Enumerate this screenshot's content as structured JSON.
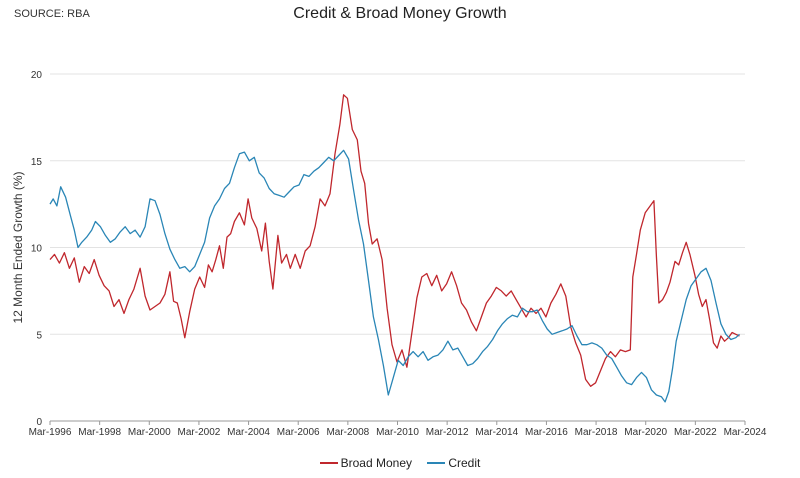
{
  "source": "SOURCE: RBA",
  "chart_data": {
    "type": "line",
    "title": "Credit & Broad Money Growth",
    "xlabel": "",
    "ylabel": "12 Month Ended Growth (%)",
    "ylim": [
      0,
      20
    ],
    "yticks": [
      "0",
      "5",
      "10",
      "15",
      "20"
    ],
    "xlim": [
      1996.17,
      2024.17
    ],
    "xticks": [
      {
        "x": 1996.17,
        "label": "Mar-1996"
      },
      {
        "x": 1998.17,
        "label": "Mar-1998"
      },
      {
        "x": 2000.17,
        "label": "Mar-2000"
      },
      {
        "x": 2002.17,
        "label": "Mar-2002"
      },
      {
        "x": 2004.17,
        "label": "Mar-2004"
      },
      {
        "x": 2006.17,
        "label": "Mar-2006"
      },
      {
        "x": 2008.17,
        "label": "Mar-2008"
      },
      {
        "x": 2010.17,
        "label": "Mar-2010"
      },
      {
        "x": 2012.17,
        "label": "Mar-2012"
      },
      {
        "x": 2014.17,
        "label": "Mar-2014"
      },
      {
        "x": 2016.17,
        "label": "Mar-2016"
      },
      {
        "x": 2018.17,
        "label": "Mar-2018"
      },
      {
        "x": 2020.17,
        "label": "Mar-2020"
      },
      {
        "x": 2022.17,
        "label": "Mar-2022"
      },
      {
        "x": 2024.17,
        "label": "Mar-2024"
      }
    ],
    "grid": "horizontal",
    "legend_position": "bottom",
    "series": [
      {
        "name": "Broad Money",
        "color": "#c0272d",
        "points": [
          [
            1996.17,
            9.3
          ],
          [
            1996.35,
            9.6
          ],
          [
            1996.55,
            9.1
          ],
          [
            1996.75,
            9.7
          ],
          [
            1996.95,
            8.8
          ],
          [
            1997.15,
            9.4
          ],
          [
            1997.35,
            8.0
          ],
          [
            1997.55,
            8.9
          ],
          [
            1997.75,
            8.5
          ],
          [
            1997.95,
            9.3
          ],
          [
            1998.15,
            8.4
          ],
          [
            1998.35,
            7.8
          ],
          [
            1998.55,
            7.5
          ],
          [
            1998.75,
            6.6
          ],
          [
            1998.95,
            7.0
          ],
          [
            1999.15,
            6.2
          ],
          [
            1999.35,
            7.0
          ],
          [
            1999.55,
            7.6
          ],
          [
            1999.8,
            8.8
          ],
          [
            2000.0,
            7.2
          ],
          [
            2000.2,
            6.4
          ],
          [
            2000.4,
            6.6
          ],
          [
            2000.6,
            6.8
          ],
          [
            2000.8,
            7.3
          ],
          [
            2001.0,
            8.6
          ],
          [
            2001.15,
            6.9
          ],
          [
            2001.3,
            6.8
          ],
          [
            2001.45,
            5.9
          ],
          [
            2001.6,
            4.8
          ],
          [
            2001.8,
            6.3
          ],
          [
            2002.0,
            7.6
          ],
          [
            2002.2,
            8.3
          ],
          [
            2002.4,
            7.7
          ],
          [
            2002.55,
            9.0
          ],
          [
            2002.7,
            8.6
          ],
          [
            2002.85,
            9.3
          ],
          [
            2003.0,
            10.1
          ],
          [
            2003.15,
            8.8
          ],
          [
            2003.3,
            10.6
          ],
          [
            2003.45,
            10.8
          ],
          [
            2003.6,
            11.5
          ],
          [
            2003.8,
            12.0
          ],
          [
            2004.0,
            11.3
          ],
          [
            2004.15,
            12.8
          ],
          [
            2004.3,
            11.7
          ],
          [
            2004.5,
            11.1
          ],
          [
            2004.7,
            9.8
          ],
          [
            2004.85,
            11.4
          ],
          [
            2005.0,
            9.2
          ],
          [
            2005.15,
            7.6
          ],
          [
            2005.35,
            10.7
          ],
          [
            2005.5,
            9.1
          ],
          [
            2005.7,
            9.6
          ],
          [
            2005.85,
            8.8
          ],
          [
            2006.05,
            9.6
          ],
          [
            2006.25,
            8.8
          ],
          [
            2006.45,
            9.8
          ],
          [
            2006.65,
            10.1
          ],
          [
            2006.85,
            11.2
          ],
          [
            2007.05,
            12.8
          ],
          [
            2007.25,
            12.4
          ],
          [
            2007.45,
            13.1
          ],
          [
            2007.65,
            15.4
          ],
          [
            2007.85,
            17.1
          ],
          [
            2008.0,
            18.8
          ],
          [
            2008.15,
            18.6
          ],
          [
            2008.35,
            16.8
          ],
          [
            2008.55,
            16.2
          ],
          [
            2008.7,
            14.4
          ],
          [
            2008.85,
            13.7
          ],
          [
            2009.0,
            11.4
          ],
          [
            2009.15,
            10.2
          ],
          [
            2009.35,
            10.5
          ],
          [
            2009.55,
            9.3
          ],
          [
            2009.75,
            6.5
          ],
          [
            2009.95,
            4.4
          ],
          [
            2010.15,
            3.4
          ],
          [
            2010.35,
            4.1
          ],
          [
            2010.55,
            3.1
          ],
          [
            2010.75,
            5.1
          ],
          [
            2010.95,
            7.1
          ],
          [
            2011.15,
            8.3
          ],
          [
            2011.35,
            8.5
          ],
          [
            2011.55,
            7.8
          ],
          [
            2011.75,
            8.4
          ],
          [
            2011.95,
            7.5
          ],
          [
            2012.15,
            7.9
          ],
          [
            2012.35,
            8.6
          ],
          [
            2012.55,
            7.8
          ],
          [
            2012.75,
            6.8
          ],
          [
            2012.95,
            6.4
          ],
          [
            2013.15,
            5.7
          ],
          [
            2013.35,
            5.2
          ],
          [
            2013.55,
            6.0
          ],
          [
            2013.75,
            6.8
          ],
          [
            2013.95,
            7.2
          ],
          [
            2014.15,
            7.7
          ],
          [
            2014.35,
            7.5
          ],
          [
            2014.55,
            7.2
          ],
          [
            2014.75,
            7.5
          ],
          [
            2014.95,
            7.0
          ],
          [
            2015.15,
            6.5
          ],
          [
            2015.35,
            6.0
          ],
          [
            2015.55,
            6.5
          ],
          [
            2015.75,
            6.2
          ],
          [
            2015.95,
            6.5
          ],
          [
            2016.15,
            6.0
          ],
          [
            2016.35,
            6.8
          ],
          [
            2016.55,
            7.3
          ],
          [
            2016.75,
            7.9
          ],
          [
            2016.95,
            7.2
          ],
          [
            2017.15,
            5.4
          ],
          [
            2017.35,
            4.5
          ],
          [
            2017.55,
            3.8
          ],
          [
            2017.75,
            2.4
          ],
          [
            2017.95,
            2.0
          ],
          [
            2018.15,
            2.2
          ],
          [
            2018.35,
            2.9
          ],
          [
            2018.55,
            3.6
          ],
          [
            2018.75,
            4.0
          ],
          [
            2018.95,
            3.7
          ],
          [
            2019.15,
            4.1
          ],
          [
            2019.35,
            4.0
          ],
          [
            2019.55,
            4.1
          ],
          [
            2019.65,
            8.3
          ],
          [
            2019.8,
            9.6
          ],
          [
            2019.95,
            11.0
          ],
          [
            2020.15,
            12.0
          ],
          [
            2020.35,
            12.4
          ],
          [
            2020.5,
            12.7
          ],
          [
            2020.6,
            9.5
          ],
          [
            2020.7,
            6.8
          ],
          [
            2020.85,
            7.0
          ],
          [
            2021.0,
            7.4
          ],
          [
            2021.15,
            8.0
          ],
          [
            2021.35,
            9.2
          ],
          [
            2021.5,
            9.0
          ],
          [
            2021.65,
            9.7
          ],
          [
            2021.8,
            10.3
          ],
          [
            2021.95,
            9.6
          ],
          [
            2022.15,
            8.4
          ],
          [
            2022.3,
            7.3
          ],
          [
            2022.45,
            6.6
          ],
          [
            2022.6,
            7.0
          ],
          [
            2022.75,
            5.8
          ],
          [
            2022.9,
            4.5
          ],
          [
            2023.05,
            4.2
          ],
          [
            2023.2,
            4.9
          ],
          [
            2023.35,
            4.6
          ],
          [
            2023.5,
            4.8
          ],
          [
            2023.65,
            5.1
          ],
          [
            2023.8,
            5.0
          ],
          [
            2023.95,
            4.9
          ]
        ]
      },
      {
        "name": "Credit",
        "color": "#2a86b6",
        "points": [
          [
            1996.17,
            12.5
          ],
          [
            1996.3,
            12.8
          ],
          [
            1996.45,
            12.4
          ],
          [
            1996.6,
            13.5
          ],
          [
            1996.8,
            12.9
          ],
          [
            1997.0,
            11.8
          ],
          [
            1997.15,
            11.0
          ],
          [
            1997.3,
            10.0
          ],
          [
            1997.45,
            10.3
          ],
          [
            1997.65,
            10.6
          ],
          [
            1997.85,
            11.0
          ],
          [
            1998.0,
            11.5
          ],
          [
            1998.2,
            11.2
          ],
          [
            1998.4,
            10.7
          ],
          [
            1998.6,
            10.3
          ],
          [
            1998.8,
            10.5
          ],
          [
            1999.0,
            10.9
          ],
          [
            1999.2,
            11.2
          ],
          [
            1999.4,
            10.8
          ],
          [
            1999.6,
            11.0
          ],
          [
            1999.8,
            10.6
          ],
          [
            2000.0,
            11.2
          ],
          [
            2000.2,
            12.8
          ],
          [
            2000.4,
            12.7
          ],
          [
            2000.6,
            11.9
          ],
          [
            2000.8,
            10.8
          ],
          [
            2001.0,
            9.9
          ],
          [
            2001.2,
            9.3
          ],
          [
            2001.4,
            8.8
          ],
          [
            2001.6,
            8.9
          ],
          [
            2001.8,
            8.6
          ],
          [
            2002.0,
            8.9
          ],
          [
            2002.2,
            9.6
          ],
          [
            2002.4,
            10.3
          ],
          [
            2002.6,
            11.7
          ],
          [
            2002.8,
            12.4
          ],
          [
            2003.0,
            12.8
          ],
          [
            2003.2,
            13.4
          ],
          [
            2003.4,
            13.7
          ],
          [
            2003.6,
            14.6
          ],
          [
            2003.8,
            15.4
          ],
          [
            2004.0,
            15.5
          ],
          [
            2004.2,
            15.0
          ],
          [
            2004.4,
            15.2
          ],
          [
            2004.6,
            14.3
          ],
          [
            2004.8,
            14.0
          ],
          [
            2005.0,
            13.4
          ],
          [
            2005.2,
            13.1
          ],
          [
            2005.4,
            13.0
          ],
          [
            2005.6,
            12.9
          ],
          [
            2005.8,
            13.2
          ],
          [
            2006.0,
            13.5
          ],
          [
            2006.2,
            13.6
          ],
          [
            2006.4,
            14.2
          ],
          [
            2006.6,
            14.1
          ],
          [
            2006.8,
            14.4
          ],
          [
            2007.0,
            14.6
          ],
          [
            2007.2,
            14.9
          ],
          [
            2007.4,
            15.2
          ],
          [
            2007.6,
            15.0
          ],
          [
            2007.8,
            15.3
          ],
          [
            2008.0,
            15.6
          ],
          [
            2008.2,
            15.1
          ],
          [
            2008.4,
            13.3
          ],
          [
            2008.6,
            11.6
          ],
          [
            2008.8,
            10.2
          ],
          [
            2009.0,
            8.1
          ],
          [
            2009.2,
            6.0
          ],
          [
            2009.4,
            4.7
          ],
          [
            2009.6,
            3.2
          ],
          [
            2009.8,
            1.5
          ],
          [
            2010.0,
            2.5
          ],
          [
            2010.2,
            3.5
          ],
          [
            2010.4,
            3.2
          ],
          [
            2010.6,
            3.7
          ],
          [
            2010.8,
            4.0
          ],
          [
            2011.0,
            3.7
          ],
          [
            2011.2,
            4.0
          ],
          [
            2011.4,
            3.5
          ],
          [
            2011.6,
            3.7
          ],
          [
            2011.8,
            3.8
          ],
          [
            2012.0,
            4.1
          ],
          [
            2012.2,
            4.6
          ],
          [
            2012.4,
            4.1
          ],
          [
            2012.6,
            4.2
          ],
          [
            2012.8,
            3.7
          ],
          [
            2013.0,
            3.2
          ],
          [
            2013.2,
            3.3
          ],
          [
            2013.4,
            3.6
          ],
          [
            2013.6,
            4.0
          ],
          [
            2013.8,
            4.3
          ],
          [
            2014.0,
            4.7
          ],
          [
            2014.2,
            5.2
          ],
          [
            2014.4,
            5.6
          ],
          [
            2014.6,
            5.9
          ],
          [
            2014.8,
            6.1
          ],
          [
            2015.0,
            6.0
          ],
          [
            2015.2,
            6.5
          ],
          [
            2015.4,
            6.3
          ],
          [
            2015.6,
            6.3
          ],
          [
            2015.8,
            6.4
          ],
          [
            2016.0,
            5.8
          ],
          [
            2016.2,
            5.3
          ],
          [
            2016.4,
            5.0
          ],
          [
            2016.6,
            5.1
          ],
          [
            2016.8,
            5.2
          ],
          [
            2017.0,
            5.3
          ],
          [
            2017.2,
            5.5
          ],
          [
            2017.4,
            4.9
          ],
          [
            2017.6,
            4.4
          ],
          [
            2017.8,
            4.4
          ],
          [
            2018.0,
            4.5
          ],
          [
            2018.2,
            4.4
          ],
          [
            2018.4,
            4.2
          ],
          [
            2018.6,
            3.8
          ],
          [
            2018.8,
            3.6
          ],
          [
            2019.0,
            3.1
          ],
          [
            2019.2,
            2.6
          ],
          [
            2019.4,
            2.2
          ],
          [
            2019.6,
            2.1
          ],
          [
            2019.8,
            2.5
          ],
          [
            2020.0,
            2.8
          ],
          [
            2020.2,
            2.5
          ],
          [
            2020.4,
            1.8
          ],
          [
            2020.6,
            1.5
          ],
          [
            2020.8,
            1.4
          ],
          [
            2020.95,
            1.1
          ],
          [
            2021.1,
            1.7
          ],
          [
            2021.25,
            3.0
          ],
          [
            2021.4,
            4.6
          ],
          [
            2021.6,
            5.8
          ],
          [
            2021.8,
            7.0
          ],
          [
            2022.0,
            7.8
          ],
          [
            2022.2,
            8.2
          ],
          [
            2022.4,
            8.6
          ],
          [
            2022.6,
            8.8
          ],
          [
            2022.8,
            8.1
          ],
          [
            2023.0,
            6.8
          ],
          [
            2023.2,
            5.6
          ],
          [
            2023.4,
            5.0
          ],
          [
            2023.6,
            4.7
          ],
          [
            2023.8,
            4.8
          ],
          [
            2023.95,
            5.0
          ]
        ]
      }
    ]
  }
}
